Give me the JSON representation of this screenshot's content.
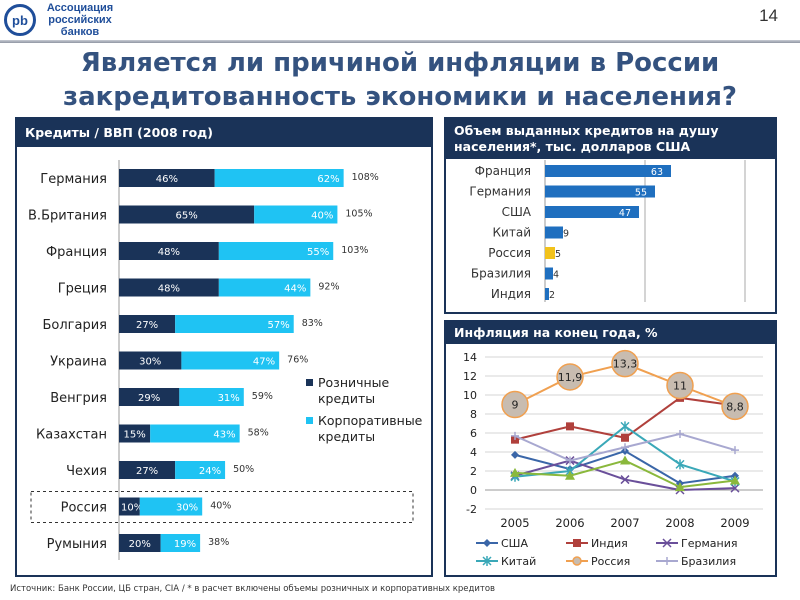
{
  "header": {
    "logo_text": "pb",
    "org_name": [
      "Ассоциация",
      "российских",
      "банков"
    ],
    "page_number": "14"
  },
  "title": [
    "Является ли причиной инфляции в России",
    "закредитованность экономики и населения?"
  ],
  "source": "Источник: Банк России, ЦБ стран, CIA / * в расчет включены объемы розничных и корпоративных кредитов",
  "colors": {
    "retail": "#1a3358",
    "corporate": "#1fc3f3",
    "bar_blue": "#1f6fbf",
    "russia_bar": "#f2c21b",
    "russia_line": "#f0a050"
  },
  "chart_data": [
    {
      "type": "bar",
      "stacked": true,
      "orientation": "horizontal",
      "title": "Кредиты / ВВП (2008 год)",
      "categories": [
        "Германия",
        "В.Британия",
        "Франция",
        "Греция",
        "Болгария",
        "Украина",
        "Венгрия",
        "Казахстан",
        "Чехия",
        "Россия",
        "Румыния"
      ],
      "series": [
        {
          "name": "Розничные кредиты",
          "values": [
            46,
            65,
            48,
            48,
            27,
            30,
            29,
            15,
            27,
            10,
            20
          ],
          "labels": [
            "46%",
            "65%",
            "48%",
            "48%",
            "27%",
            "30%",
            "29%",
            "15%",
            "27%",
            "10%",
            "20%"
          ]
        },
        {
          "name": "Корпоративные кредиты",
          "values": [
            62,
            40,
            55,
            44,
            57,
            47,
            31,
            43,
            24,
            30,
            19
          ],
          "labels": [
            "62%",
            "40%",
            "55%",
            "44%",
            "57%",
            "47%",
            "31%",
            "43%",
            "24%",
            "30%",
            "19%"
          ]
        }
      ],
      "totals": [
        "108%",
        "105%",
        "103%",
        "92%",
        "83%",
        "76%",
        "59%",
        "58%",
        "50%",
        "40%",
        "38%"
      ],
      "highlight": "Россия",
      "legend_position": "right"
    },
    {
      "type": "bar",
      "orientation": "horizontal",
      "title": "Объем выданных кредитов на душу населения*, тыс. долларов США",
      "categories": [
        "Франция",
        "Германия",
        "США",
        "Китай",
        "Россия",
        "Бразилия",
        "Индия"
      ],
      "values": [
        63,
        55,
        47,
        9,
        5,
        4,
        2
      ],
      "xlim": [
        0,
        120
      ],
      "grid": true
    },
    {
      "type": "line",
      "title": "Инфляция на конец года, %",
      "x": [
        "2005",
        "2006",
        "2007",
        "2008",
        "2009"
      ],
      "ylim": [
        -2,
        14
      ],
      "yticks": [
        "14",
        "12",
        "10",
        "8",
        "6",
        "4",
        "2",
        "0",
        "-2"
      ],
      "grid": true,
      "legend_position": "bottom",
      "series": [
        {
          "name": "США",
          "color": "#3a66a8",
          "marker": "diamond",
          "values": [
            3.7,
            2.2,
            4.1,
            0.7,
            1.5
          ]
        },
        {
          "name": "Индия",
          "color": "#b0403c",
          "marker": "square",
          "values": [
            5.3,
            6.7,
            5.5,
            9.7,
            8.9
          ]
        },
        {
          "name": "Германия",
          "color": "#6a4f9a",
          "marker": "x",
          "values": [
            1.5,
            3.1,
            1.1,
            0.0,
            0.2
          ]
        },
        {
          "name": "Китай",
          "color": "#3aa8b8",
          "marker": "star",
          "values": [
            1.4,
            2.0,
            6.7,
            2.7,
            0.9
          ]
        },
        {
          "name": "Россия",
          "color": "#f0a050",
          "marker": "circle",
          "values": [
            9,
            11.9,
            13.3,
            11,
            8.8
          ],
          "labels": [
            "9",
            "11,9",
            "13,3",
            "11",
            "8,8"
          ]
        },
        {
          "name": "Бразилия",
          "color": "#a8a8d0",
          "marker": "plus",
          "values": [
            5.7,
            3.1,
            4.5,
            5.9,
            4.2
          ]
        },
        {
          "color": "#8ab83c",
          "marker": "triangle",
          "values": [
            1.8,
            1.5,
            3.1,
            0.3,
            1.0
          ]
        }
      ]
    }
  ]
}
